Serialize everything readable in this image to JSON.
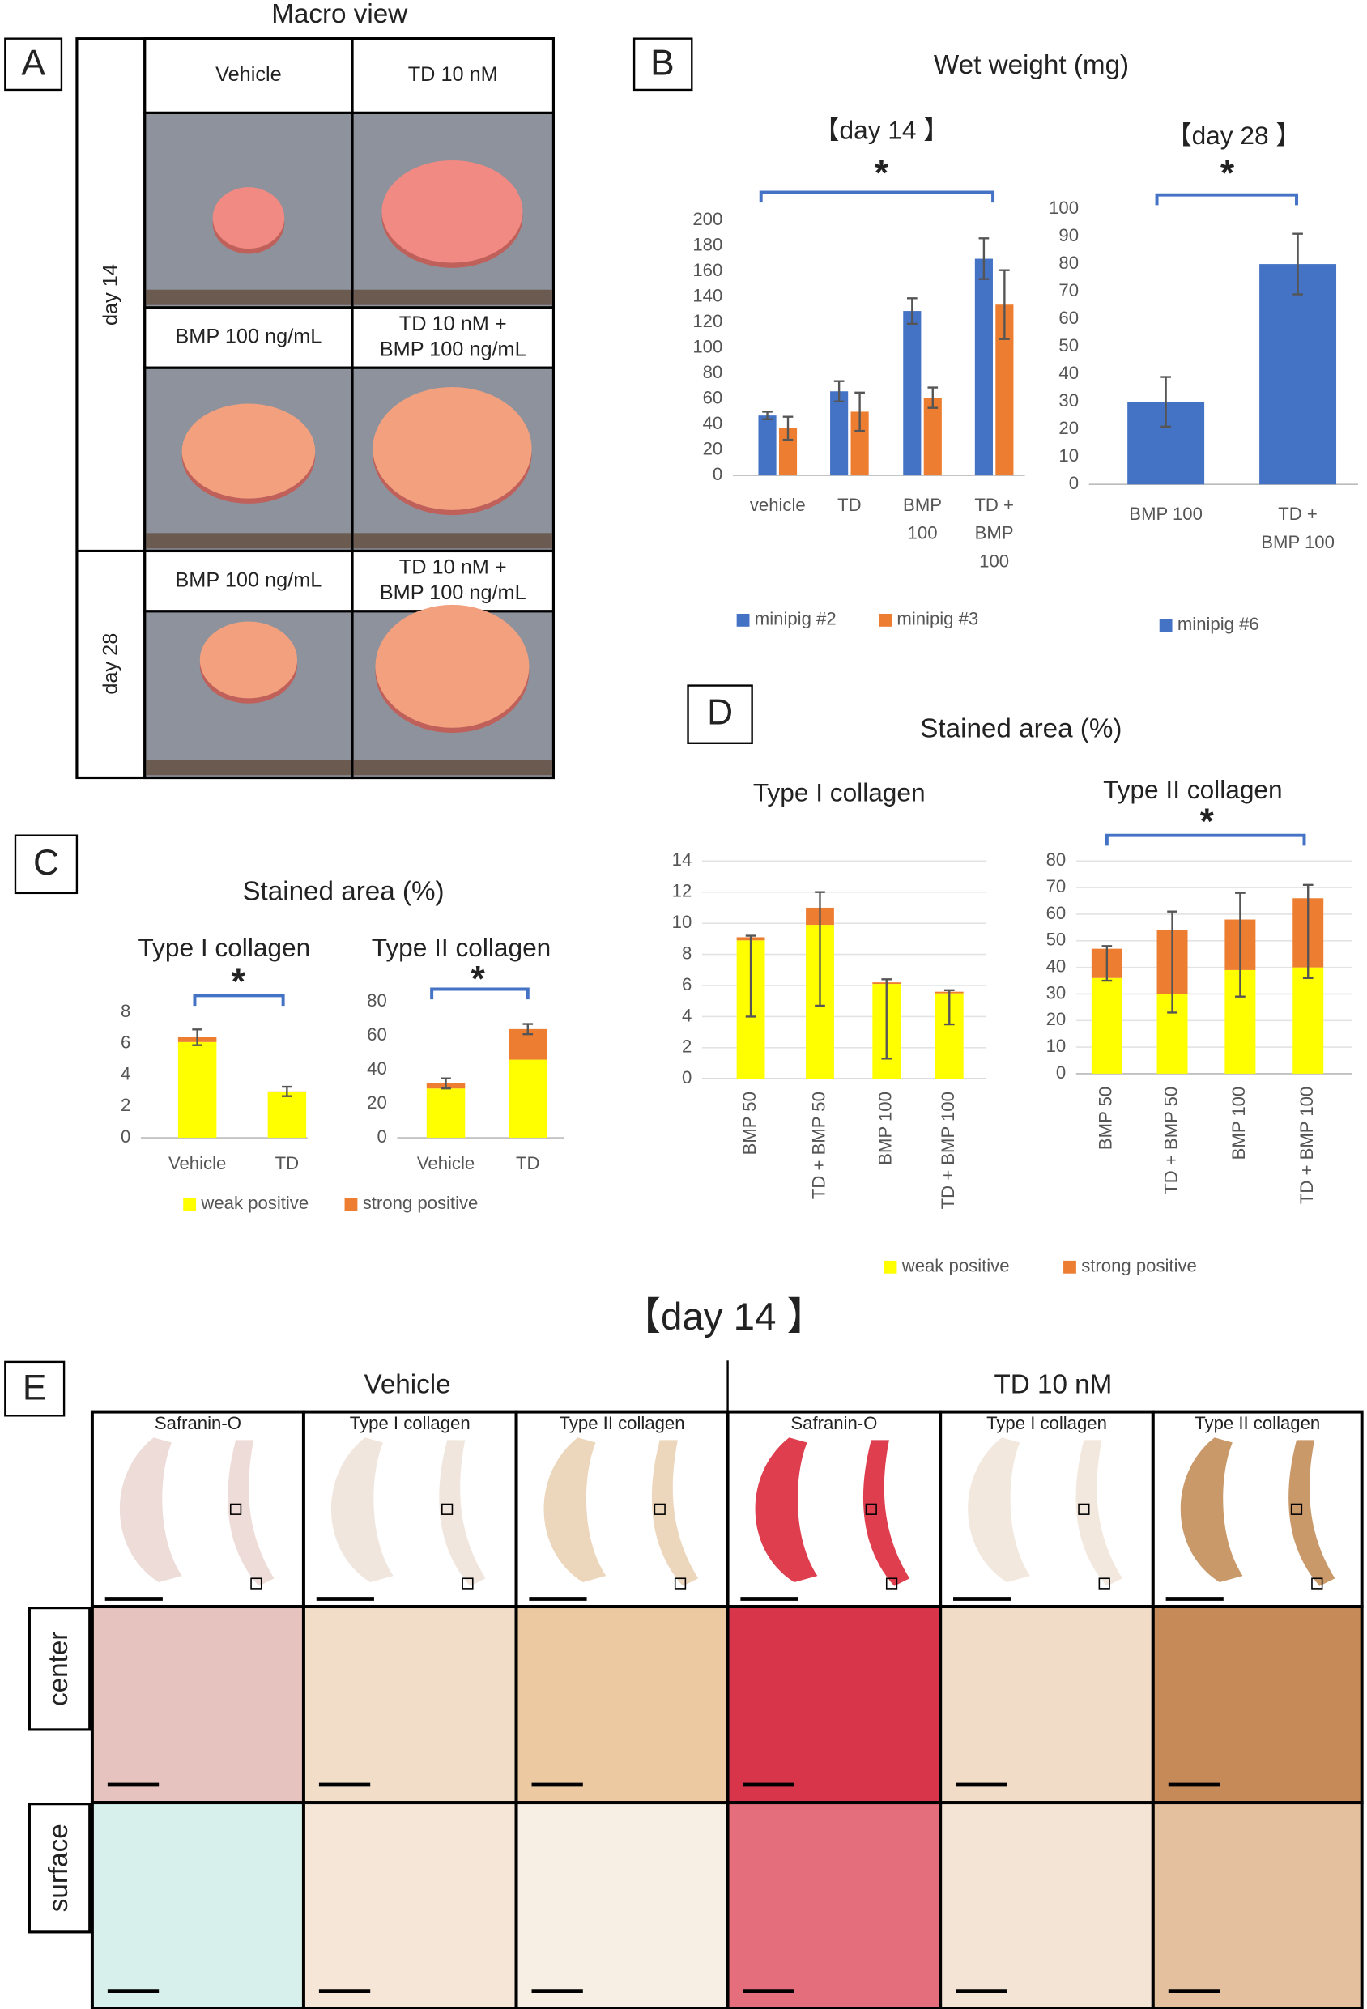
{
  "figure": {
    "a": {
      "label": "A",
      "title": "Macro view",
      "rows": [
        "day 14",
        "day 28"
      ],
      "cells": [
        [
          [
            "Vehicle"
          ],
          [
            "TD 10 nM"
          ]
        ],
        [
          [
            "BMP 100 ng/mL"
          ],
          [
            "TD 10 nM +",
            "BMP 100 ng/mL"
          ]
        ],
        [
          [
            "BMP 100 ng/mL"
          ],
          [
            "TD 10 nM +",
            "BMP 100 ng/mL"
          ]
        ]
      ]
    },
    "b": {
      "label": "B",
      "title": "Wet weight (mg)"
    },
    "c": {
      "label": "C",
      "title": "Stained area (%)"
    },
    "d": {
      "label": "D",
      "title": "Stained area (%)"
    },
    "e": {
      "label": "E",
      "title": "【day 14 】",
      "groups": [
        "Vehicle",
        "TD 10 nM"
      ],
      "stains": [
        "Safranin-O",
        "Type I collagen",
        "Type II collagen"
      ],
      "rows": [
        "center",
        "surface"
      ]
    }
  },
  "chart_data": [
    {
      "type": "bar",
      "title": "【day 14 】",
      "annotation": "*",
      "categories": [
        [
          "vehicle"
        ],
        [
          "TD"
        ],
        [
          "BMP",
          "100"
        ],
        [
          "TD +",
          "BMP",
          "100"
        ]
      ],
      "series": [
        {
          "name": "minipig #2",
          "color": "#4472c4",
          "values": [
            47,
            66,
            129,
            170
          ],
          "errors": [
            3,
            8,
            10,
            16
          ]
        },
        {
          "name": "minipig #3",
          "color": "#ed7d31",
          "values": [
            37,
            50,
            61,
            134
          ],
          "errors": [
            9,
            15,
            8,
            27
          ]
        }
      ],
      "ylim": [
        0,
        200
      ],
      "yticks": [
        0,
        20,
        40,
        60,
        80,
        100,
        120,
        140,
        160,
        180,
        200
      ],
      "grid": false
    },
    {
      "type": "bar",
      "title": "【day 28 】",
      "annotation": "*",
      "categories": [
        [
          "BMP 100"
        ],
        [
          "TD +",
          "BMP 100"
        ]
      ],
      "series": [
        {
          "name": "minipig #6",
          "color": "#4472c4",
          "values": [
            30,
            80
          ],
          "errors": [
            9,
            11
          ]
        }
      ],
      "ylim": [
        0,
        100
      ],
      "yticks": [
        0,
        10,
        20,
        30,
        40,
        50,
        60,
        70,
        80,
        90,
        100
      ],
      "grid": false
    },
    {
      "type": "stacked_bar",
      "title": "Type I collagen",
      "annotation": "*",
      "categories": [
        "Vehicle",
        "TD"
      ],
      "series": [
        {
          "name": "weak positive",
          "color": "#ffff00",
          "values": [
            6.1,
            2.9
          ]
        },
        {
          "name": "strong positive",
          "color": "#ed7d31",
          "values": [
            0.3,
            0.05
          ],
          "errors": [
            0.5,
            0.3
          ]
        }
      ],
      "ylim": [
        0,
        8
      ],
      "yticks": [
        0,
        2,
        4,
        6,
        8
      ],
      "grid": false
    },
    {
      "type": "stacked_bar",
      "title": "Type II collagen",
      "annotation": "*",
      "categories": [
        "Vehicle",
        "TD"
      ],
      "series": [
        {
          "color": "#ffff00",
          "values": [
            29,
            46
          ]
        },
        {
          "color": "#ed7d31",
          "values": [
            3,
            18
          ],
          "errors": [
            3,
            3
          ]
        }
      ],
      "ylim": [
        0,
        80
      ],
      "yticks": [
        0,
        20,
        40,
        60,
        80
      ],
      "grid": false
    },
    {
      "type": "stacked_bar",
      "title": "Type I collagen",
      "categories": [
        "BMP 50",
        "TD + BMP 50",
        "BMP 100",
        "TD + BMP 100"
      ],
      "series": [
        {
          "name": "weak positive",
          "color": "#ffff00",
          "values": [
            8.9,
            9.9,
            6.1,
            5.5
          ]
        },
        {
          "name": "strong positive",
          "color": "#ed7d31",
          "values": [
            0.2,
            1.1,
            0.1,
            0.1
          ],
          "error_minus": [
            5.1,
            6.3,
            4.9,
            2.1
          ],
          "error_plus": [
            0.1,
            1.0,
            0.2,
            0.1
          ]
        }
      ],
      "ylim": [
        0,
        14
      ],
      "yticks": [
        0,
        2,
        4,
        6,
        8,
        10,
        12,
        14
      ],
      "grid": true
    },
    {
      "type": "stacked_bar",
      "title": "Type II collagen",
      "annotation": "*",
      "categories": [
        "BMP 50",
        "TD + BMP 50",
        "BMP 100",
        "TD + BMP 100"
      ],
      "series": [
        {
          "color": "#ffff00",
          "values": [
            36,
            30,
            39,
            40
          ]
        },
        {
          "color": "#ed7d31",
          "values": [
            11,
            24,
            19,
            26
          ],
          "error_minus": [
            12,
            31,
            29,
            30
          ],
          "error_plus": [
            1,
            7,
            10,
            5
          ]
        }
      ],
      "ylim": [
        0,
        80
      ],
      "yticks": [
        0,
        10,
        20,
        30,
        40,
        50,
        60,
        70,
        80
      ],
      "grid": true
    }
  ]
}
